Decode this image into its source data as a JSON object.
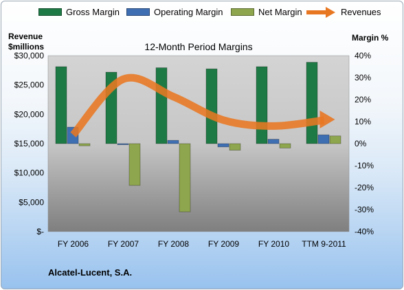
{
  "chart_data": {
    "type": "bar",
    "title": "12-Month Period Margins",
    "categories": [
      "FY 2006",
      "FY 2007",
      "FY 2008",
      "FY 2009",
      "FY 2010",
      "TTM 9-2011"
    ],
    "series": [
      {
        "name": "Gross Margin",
        "axis": "right",
        "color": "#1e7a45",
        "values": [
          35,
          32.5,
          34.5,
          34,
          35,
          37
        ]
      },
      {
        "name": "Operating Margin",
        "axis": "right",
        "color": "#3f6fb3",
        "values": [
          7.5,
          -0.5,
          1.5,
          -1.5,
          2,
          4
        ]
      },
      {
        "name": "Net Margin",
        "axis": "right",
        "color": "#8ea64d",
        "values": [
          -1,
          -19,
          -31,
          -3,
          -2,
          3.5
        ]
      },
      {
        "name": "Revenues",
        "type": "line",
        "axis": "left",
        "color": "#e87722",
        "values": [
          16500,
          26000,
          23000,
          19000,
          18000,
          19000
        ]
      }
    ],
    "left_axis": {
      "label": "Revenue\n$millions",
      "range": [
        0,
        30000
      ],
      "ticks": [
        "$-",
        "$5,000",
        "$10,000",
        "$15,000",
        "$20,000",
        "$25,000",
        "$30,000"
      ]
    },
    "right_axis": {
      "label": "Margin %",
      "range": [
        -40,
        40
      ],
      "ticks": [
        "-40%",
        "-30%",
        "-20%",
        "-10%",
        "0%",
        "10%",
        "20%",
        "30%",
        "40%"
      ]
    },
    "legend": "top"
  },
  "labels": {
    "legend_gross": "Gross Margin",
    "legend_operating": "Operating Margin",
    "legend_net": "Net Margin",
    "legend_revenues": "Revenues",
    "left_axis_line1": "Revenue",
    "left_axis_line2": "$millions",
    "right_axis_title": "Margin %",
    "company": "Alcatel-Lucent, S.A."
  }
}
